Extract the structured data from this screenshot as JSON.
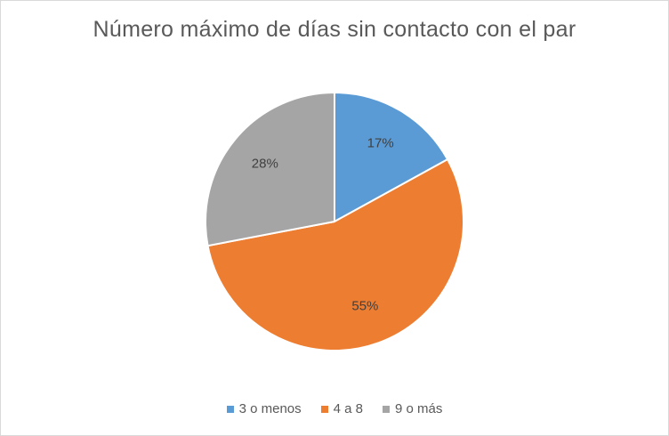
{
  "chart_data": {
    "type": "pie",
    "title": "Número máximo de días sin contacto con el par",
    "categories": [
      "3 o menos",
      "4 a 8",
      "9 o más"
    ],
    "values": [
      17,
      55,
      28
    ],
    "data_labels": [
      "17%",
      "55%",
      "28%"
    ],
    "colors": [
      "#5B9BD5",
      "#ED7D31",
      "#A5A5A5"
    ],
    "legend_position": "bottom",
    "start_angle": "top, clockwise"
  }
}
